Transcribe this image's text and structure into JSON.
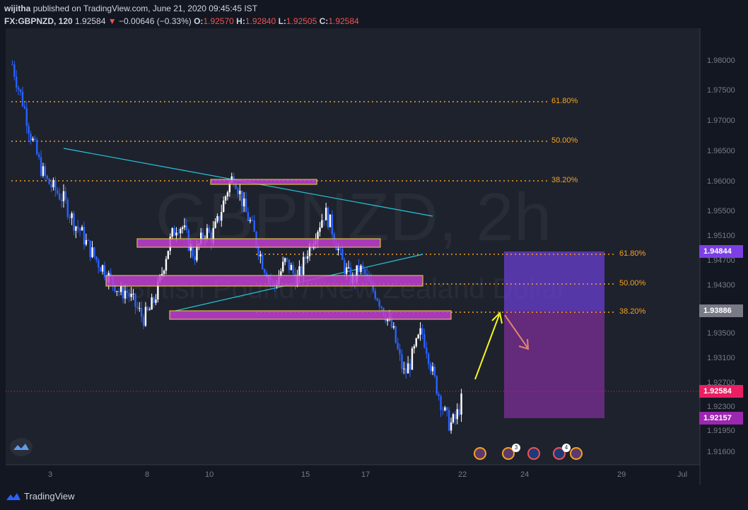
{
  "header": {
    "author": "wijitha",
    "published_text": "published on TradingView.com, June 21, 2020 09:45:45 IST",
    "symbol_label": "FX:GBPNZD, 120",
    "last_price": "1.92584",
    "change_arrow": "▼",
    "change": "−0.00646 (−0.33%)",
    "o_label": "O:",
    "o_value": "1.92570",
    "h_label": "H:",
    "h_value": "1.92840",
    "l_label": "L:",
    "l_value": "1.92505",
    "c_label": "C:",
    "c_value": "1.92584"
  },
  "watermark": {
    "symbol": "GBPNZD, 2h",
    "description": "British Pound / New Zealand Dollar"
  },
  "price_axis": {
    "ticks": [
      "1.98000",
      "1.97500",
      "1.97000",
      "1.96500",
      "1.96000",
      "1.95500",
      "1.95100",
      "1.94700",
      "1.94300",
      "1.93500",
      "1.93100",
      "1.92700",
      "1.92300",
      "1.91950",
      "1.91600"
    ],
    "tags": [
      {
        "value": "1.94844",
        "color": "#7b3fe4"
      },
      {
        "value": "1.93886",
        "color": "#787b86"
      },
      {
        "value": "1.92584",
        "color": "#e91e63"
      },
      {
        "value": "1.92157",
        "color": "#9c27b0"
      }
    ]
  },
  "time_axis": {
    "ticks": [
      "3",
      "8",
      "10",
      "15",
      "17",
      "22",
      "24",
      "29",
      "Jul"
    ]
  },
  "fib_left": [
    "61.80%",
    "50.00%",
    "38.20%"
  ],
  "fib_right": [
    "61.80%",
    "50.00%",
    "38.20%"
  ],
  "event_badges": [
    "3",
    "4"
  ],
  "footer": {
    "brand": "TradingView"
  },
  "colors": {
    "background": "#131722",
    "plot": "#1e222d",
    "fib": "#f7a21b",
    "zone_fill": "#c13fd0",
    "zone_border": "#f7d54a",
    "trendline": "#26c6da",
    "candle_up": "#ffffff",
    "candle_down": "#2962ff",
    "arrow_up": "#f5f51e",
    "arrow_down": "#e0846a",
    "target_zone": "#6a3fd0",
    "stop_zone": "#8a2fa8"
  },
  "chart_data": {
    "type": "candlestick",
    "symbol": "FX:GBPNZD",
    "interval": "120",
    "x_ticks": [
      "3",
      "8",
      "10",
      "15",
      "17",
      "22",
      "24",
      "29",
      "Jul"
    ],
    "ylim": [
      1.916,
      1.983
    ],
    "close_path": [
      [
        1.9795,
        1.976,
        1.973,
        1.969,
        1.966,
        1.963,
        1.961,
        1.96,
        1.959,
        1.958,
        1.956,
        1.954,
        1.953,
        1.951,
        1.9495,
        1.948,
        1.947,
        1.9455,
        1.9445,
        1.943
      ],
      [
        1.9435,
        1.942,
        1.9405,
        1.939,
        1.94,
        1.942,
        1.945,
        1.949,
        1.952,
        1.954,
        1.9535,
        1.951,
        1.949,
        1.951,
        1.953,
        1.952,
        1.954,
        1.957,
        1.96,
        1.962
      ],
      [
        1.959,
        1.956,
        1.954,
        1.951,
        1.948,
        1.946,
        1.944,
        1.946,
        1.948,
        1.947,
        1.945,
        1.947,
        1.95,
        1.952,
        1.954,
        1.956,
        1.954,
        1.951,
        1.948,
        1.946
      ],
      [
        1.945,
        1.947,
        1.946,
        1.944,
        1.943,
        1.941,
        1.939,
        1.937,
        1.933,
        1.93,
        1.932,
        1.9345,
        1.937,
        1.934,
        1.93,
        1.927,
        1.924,
        1.922,
        1.923,
        1.9258
      ]
    ],
    "horizontal_zones": [
      {
        "from": 1.9605,
        "to": 1.96
      },
      {
        "from": 1.9505,
        "to": 1.949
      },
      {
        "from": 1.9455,
        "to": 1.944
      },
      {
        "from": 1.9395,
        "to": 1.9385
      }
    ],
    "fib_levels_left": [
      {
        "label": "61.80%",
        "price": 1.973
      },
      {
        "label": "50.00%",
        "price": 1.967
      },
      {
        "label": "38.20%",
        "price": 1.96
      }
    ],
    "fib_levels_right": [
      {
        "label": "61.80%",
        "price": 1.9484
      },
      {
        "label": "50.00%",
        "price": 1.9438
      },
      {
        "label": "38.20%",
        "price": 1.9388
      }
    ],
    "position_tool": {
      "target": 1.94844,
      "entry": 1.93886,
      "stop": 1.92157
    },
    "last_price": 1.92584
  }
}
